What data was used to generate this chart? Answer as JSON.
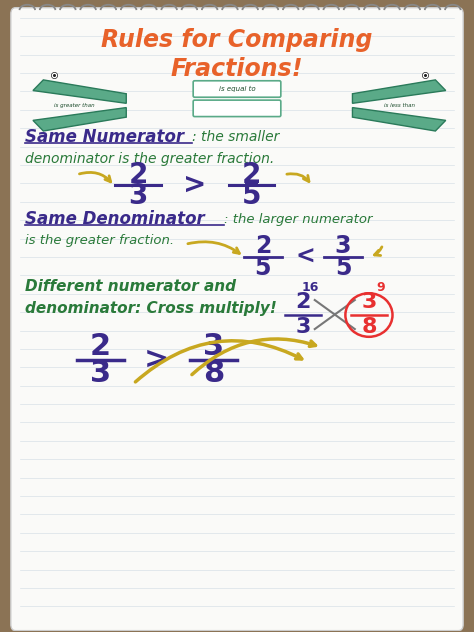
{
  "bg_color": "#8b7355",
  "paper_color": "#fafaf8",
  "line_color": "#b8c8d8",
  "title_line1": "Rules for Comparing",
  "title_line2": "Fractions!",
  "title_color": "#e8622a",
  "section1_label": "Same Numerator",
  "section1_label_color": "#3a2a8a",
  "section1_desc": ": the smaller",
  "section1_desc2": "denominator is the greater fraction.",
  "section1_desc_color": "#2a7a3a",
  "section1_frac1_n": "2",
  "section1_frac1_d": "3",
  "section1_frac2_n": "2",
  "section1_frac2_d": "5",
  "section1_symbol": ">",
  "section2_label": "Same Denominator",
  "section2_label_color": "#3a2a8a",
  "section2_desc": ": the larger numerator",
  "section2_desc2": "is the greater fraction.",
  "section2_desc_color": "#2a7a3a",
  "section2_frac1_n": "2",
  "section2_frac1_d": "5",
  "section2_frac2_n": "3",
  "section2_frac2_d": "5",
  "section2_symbol": "<",
  "section3_label": "Different numerator and",
  "section3_label2": "denominator: Cross multiply!",
  "section3_label_color": "#2a7a3a",
  "section3_frac1_n": "2",
  "section3_frac1_d": "3",
  "section3_frac2_n": "3",
  "section3_frac2_d": "8",
  "section3_symbol": ">",
  "frac_color": "#3a2a8a",
  "symbol_color": "#3a2a8a",
  "arrow_color": "#c8a820",
  "cross_color_red": "#e83030",
  "cross_color_blue": "#3a2a8a",
  "cross_num_left": "16",
  "cross_num_right": "9",
  "alligator_color": "#5aaa88",
  "alligator_edge": "#2a7a5a",
  "spiral_color": "#888888",
  "equal_box_color": "#5aaa88"
}
